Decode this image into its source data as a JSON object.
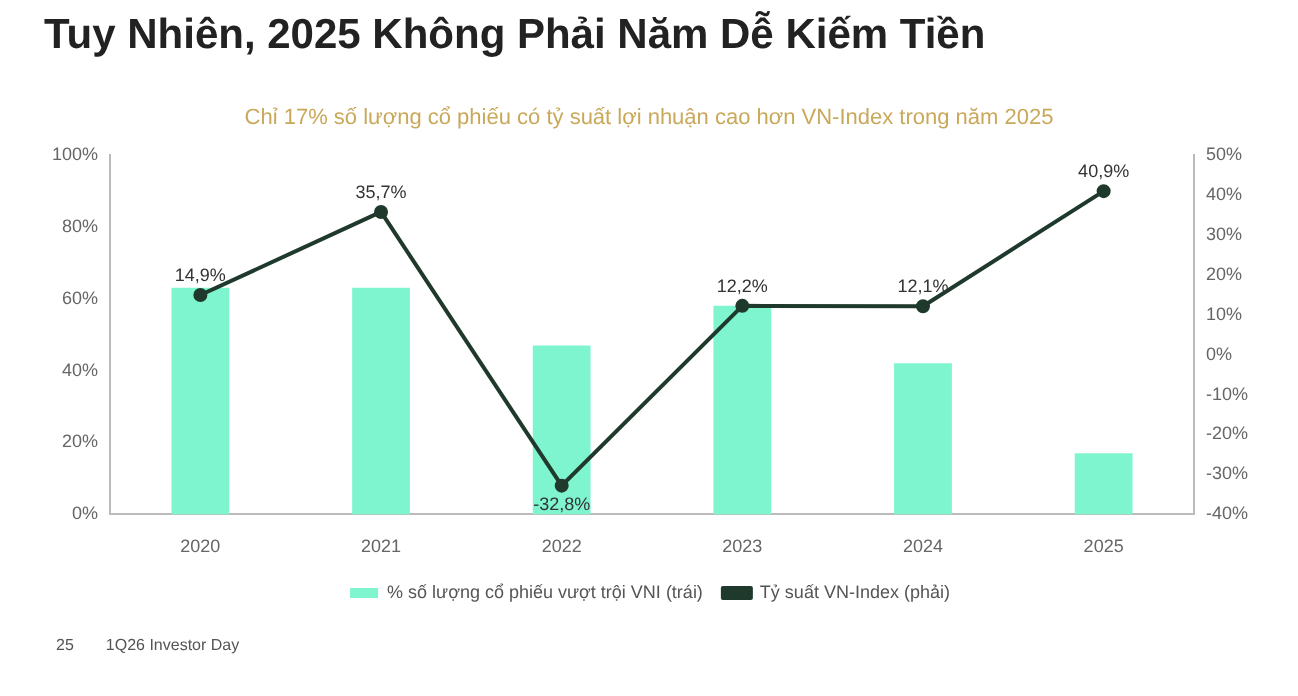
{
  "chart_data": {
    "type": "bar",
    "title": "Tuy Nhiên, 2025 Không Phải Năm Dễ Kiếm Tiền",
    "subtitle": "Chỉ 17% số lượng cổ phiếu có tỷ suất lợi nhuận cao hơn VN-Index trong năm 2025",
    "categories": [
      "2020",
      "2021",
      "2022",
      "2023",
      "2024",
      "2025"
    ],
    "series": [
      {
        "name": "% số lượng cổ phiếu vượt trội VNI (trái)",
        "color": "#7ef5cf",
        "values": [
          63,
          63,
          47,
          58,
          42,
          17
        ]
      },
      {
        "name": "Tỷ suất VN-Index (phải)",
        "type": "line",
        "axis": "y2",
        "color": "#1f3a2c",
        "values": [
          14.9,
          35.7,
          -32.8,
          12.2,
          12.1,
          40.9
        ],
        "value_labels": [
          "14,9%",
          "35,7%",
          "-32,8%",
          "12,2%",
          "12,1%",
          "40,9%"
        ]
      }
    ],
    "ylim": [
      0,
      100
    ],
    "yticks": [
      {
        "value": 0,
        "label": "0%"
      },
      {
        "value": 20,
        "label": "20%"
      },
      {
        "value": 40,
        "label": "40%"
      },
      {
        "value": 60,
        "label": "60%"
      },
      {
        "value": 80,
        "label": "80%"
      },
      {
        "value": 100,
        "label": "100%"
      }
    ],
    "y2lim": [
      -40,
      50
    ],
    "y2ticks": [
      {
        "value": -40,
        "label": "-40%"
      },
      {
        "value": -30,
        "label": "-30%"
      },
      {
        "value": -20,
        "label": "-20%"
      },
      {
        "value": -10,
        "label": "-10%"
      },
      {
        "value": 0,
        "label": "0%"
      },
      {
        "value": 10,
        "label": "10%"
      },
      {
        "value": 20,
        "label": "20%"
      },
      {
        "value": 30,
        "label": "30%"
      },
      {
        "value": 40,
        "label": "40%"
      },
      {
        "value": 50,
        "label": "50%"
      }
    ],
    "legend": "bottom",
    "marker": "circle",
    "annotations": [
      "25",
      "1Q26 Investor Day"
    ]
  }
}
